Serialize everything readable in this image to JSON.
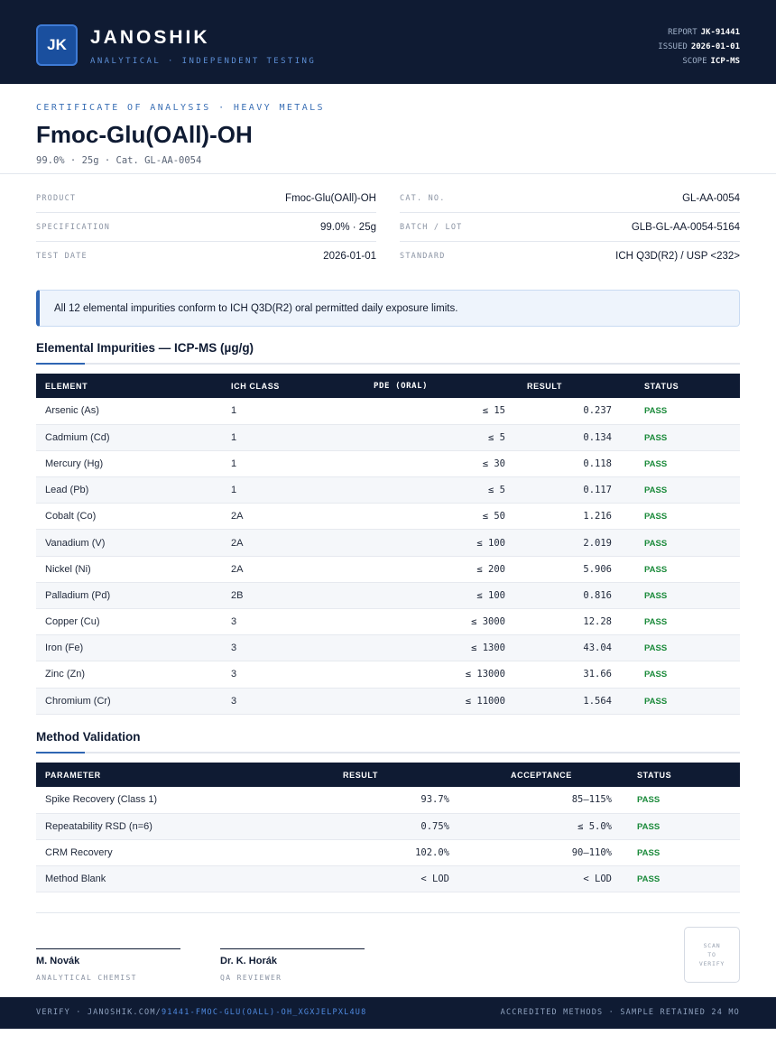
{
  "header": {
    "logo_text": "JK",
    "brand": "JANOSHIK",
    "tagline": "ANALYTICAL · INDEPENDENT TESTING",
    "report_label": "REPORT",
    "report_value": "JK-91441",
    "issued_label": "ISSUED",
    "issued_value": "2026-01-01",
    "scope_label": "SCOPE",
    "scope_value": "ICP-MS"
  },
  "doc": {
    "eyebrow": "CERTIFICATE OF ANALYSIS · HEAVY METALS",
    "title": "Fmoc-Glu(OAll)-OH",
    "subtitle": "99.0% · 25g  ·  Cat. GL-AA-0054"
  },
  "info": {
    "left": [
      {
        "label": "PRODUCT",
        "value": "Fmoc-Glu(OAll)-OH"
      },
      {
        "label": "SPECIFICATION",
        "value": "99.0% · 25g"
      },
      {
        "label": "TEST DATE",
        "value": "2026-01-01"
      }
    ],
    "right": [
      {
        "label": "CAT. NO.",
        "value": "GL-AA-0054"
      },
      {
        "label": "BATCH / LOT",
        "value": "GLB-GL-AA-0054-5164"
      },
      {
        "label": "STANDARD",
        "value": "ICH Q3D(R2) / USP <232>"
      }
    ]
  },
  "notice": "All 12 elemental impurities conform to ICH Q3D(R2) oral permitted daily exposure limits.",
  "impurities": {
    "section_title": "Elemental Impurities — ICP-MS (µg/g)",
    "headers": [
      "ELEMENT",
      "ICH CLASS",
      "PDE (ORAL)",
      "RESULT",
      "STATUS"
    ],
    "rows": [
      {
        "element": "Arsenic (As)",
        "class": "1",
        "pde": "≤ 15",
        "result": "0.237",
        "status": "PASS"
      },
      {
        "element": "Cadmium (Cd)",
        "class": "1",
        "pde": "≤ 5",
        "result": "0.134",
        "status": "PASS"
      },
      {
        "element": "Mercury (Hg)",
        "class": "1",
        "pde": "≤ 30",
        "result": "0.118",
        "status": "PASS"
      },
      {
        "element": "Lead (Pb)",
        "class": "1",
        "pde": "≤ 5",
        "result": "0.117",
        "status": "PASS"
      },
      {
        "element": "Cobalt (Co)",
        "class": "2A",
        "pde": "≤ 50",
        "result": "1.216",
        "status": "PASS"
      },
      {
        "element": "Vanadium (V)",
        "class": "2A",
        "pde": "≤ 100",
        "result": "2.019",
        "status": "PASS"
      },
      {
        "element": "Nickel (Ni)",
        "class": "2A",
        "pde": "≤ 200",
        "result": "5.906",
        "status": "PASS"
      },
      {
        "element": "Palladium (Pd)",
        "class": "2B",
        "pde": "≤ 100",
        "result": "0.816",
        "status": "PASS"
      },
      {
        "element": "Copper (Cu)",
        "class": "3",
        "pde": "≤ 3000",
        "result": "12.28",
        "status": "PASS"
      },
      {
        "element": "Iron (Fe)",
        "class": "3",
        "pde": "≤ 1300",
        "result": "43.04",
        "status": "PASS"
      },
      {
        "element": "Zinc (Zn)",
        "class": "3",
        "pde": "≤ 13000",
        "result": "31.66",
        "status": "PASS"
      },
      {
        "element": "Chromium (Cr)",
        "class": "3",
        "pde": "≤ 11000",
        "result": "1.564",
        "status": "PASS"
      }
    ]
  },
  "validation": {
    "section_title": "Method Validation",
    "headers": [
      "PARAMETER",
      "RESULT",
      "ACCEPTANCE",
      "STATUS"
    ],
    "rows": [
      {
        "parameter": "Spike Recovery (Class 1)",
        "result": "93.7%",
        "acceptance": "85–115%",
        "status": "PASS"
      },
      {
        "parameter": "Repeatability RSD (n=6)",
        "result": "0.75%",
        "acceptance": "≤ 5.0%",
        "status": "PASS"
      },
      {
        "parameter": "CRM Recovery",
        "result": "102.0%",
        "acceptance": "90–110%",
        "status": "PASS"
      },
      {
        "parameter": "Method Blank",
        "result": "< LOD",
        "acceptance": "< LOD",
        "status": "PASS"
      }
    ]
  },
  "signatures": [
    {
      "name": "M. Novák",
      "role": "ANALYTICAL CHEMIST"
    },
    {
      "name": "Dr. K. Horák",
      "role": "QA REVIEWER"
    }
  ],
  "qr_text": [
    "SCAN",
    "TO",
    "VERIFY"
  ],
  "footer": {
    "verify_prefix": "VERIFY · JANOSHIK.COM/",
    "verify_link": "91441-FMOC-GLU(OALL)-OH_XGXJELPXL4U8",
    "right": "ACCREDITED METHODS · SAMPLE RETAINED 24 MO"
  },
  "colors": {
    "navy": "#0f1b33",
    "accent_blue": "#2f66b3",
    "pass_green": "#1a8a3a",
    "notice_bg": "#eef4fc"
  }
}
